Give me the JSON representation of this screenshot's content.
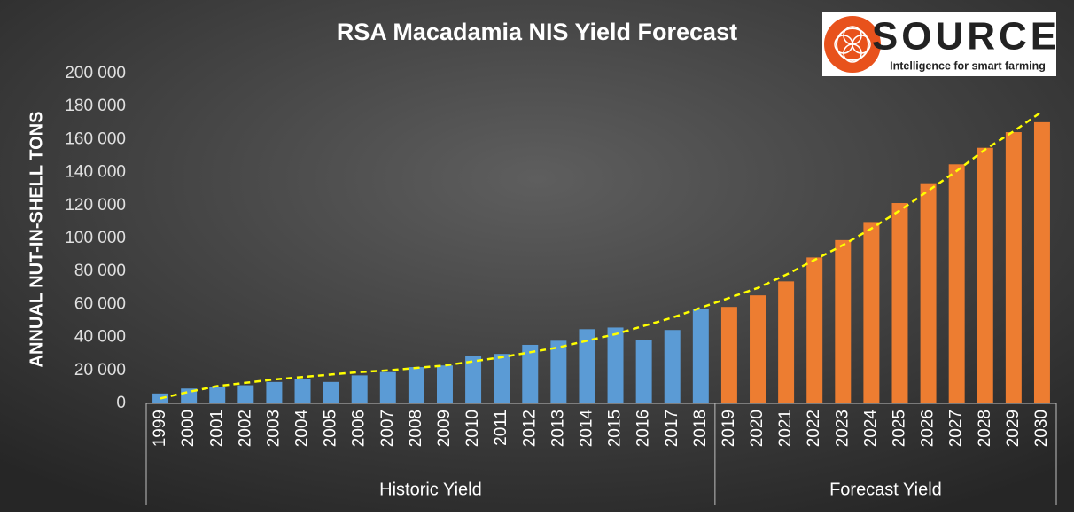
{
  "chart_data": {
    "type": "bar",
    "title": "RSA Macadamia NIS Yield Forecast",
    "y_label": "ANNUAL NUT-IN-SHELL TONS",
    "logo": {
      "brand": "SOURCE",
      "tagline": "Intelligence for smart farming"
    },
    "categories": [
      "1999",
      "2000",
      "2001",
      "2002",
      "2003",
      "2004",
      "2005",
      "2006",
      "2007",
      "2008",
      "2009",
      "2010",
      "2011",
      "2012",
      "2013",
      "2014",
      "2015",
      "2016",
      "2017",
      "2018",
      "2019",
      "2020",
      "2021",
      "2022",
      "2023",
      "2024",
      "2025",
      "2026",
      "2027",
      "2028",
      "2029",
      "2030"
    ],
    "series": [
      {
        "name": "Historic Yield",
        "color": "#5b9bd5",
        "values": [
          6000,
          9000,
          10000,
          11000,
          13000,
          15000,
          13000,
          17000,
          19000,
          22000,
          23000,
          28500,
          30000,
          35500,
          38000,
          45000,
          46000,
          38500,
          44500,
          57500,
          null,
          null,
          null,
          null,
          null,
          null,
          null,
          null,
          null,
          null,
          null,
          null
        ]
      },
      {
        "name": "Forecast Yield",
        "color": "#ed7d31",
        "values": [
          null,
          null,
          null,
          null,
          null,
          null,
          null,
          null,
          null,
          null,
          null,
          null,
          null,
          null,
          null,
          null,
          null,
          null,
          null,
          null,
          58500,
          65500,
          74000,
          88500,
          99000,
          110000,
          121500,
          133500,
          145000,
          155000,
          164500,
          170500
        ]
      }
    ],
    "trend": {
      "color": "#ffff00",
      "values": [
        3000,
        7000,
        10500,
        12500,
        14500,
        16000,
        17500,
        19000,
        20000,
        21500,
        23000,
        25500,
        28000,
        31000,
        34000,
        38000,
        42000,
        47000,
        52000,
        58000,
        64000,
        70000,
        78000,
        87000,
        96000,
        106000,
        117000,
        129000,
        141000,
        154000,
        165000,
        177000
      ]
    },
    "ylim": [
      0,
      200000
    ],
    "yticks": [
      0,
      {
        "value": 20000,
        "label": "20 000"
      },
      {
        "value": 40000,
        "label": "40 000"
      },
      {
        "value": 60000,
        "label": "60 000"
      },
      {
        "value": 80000,
        "label": "80 000"
      },
      {
        "value": 100000,
        "label": "100 000"
      },
      {
        "value": 120000,
        "label": "120 000"
      },
      {
        "value": 140000,
        "label": "140 000"
      },
      {
        "value": 160000,
        "label": "160 000"
      },
      {
        "value": 180000,
        "label": "180 000"
      },
      {
        "value": 200000,
        "label": "200 000"
      }
    ],
    "grid": false
  }
}
